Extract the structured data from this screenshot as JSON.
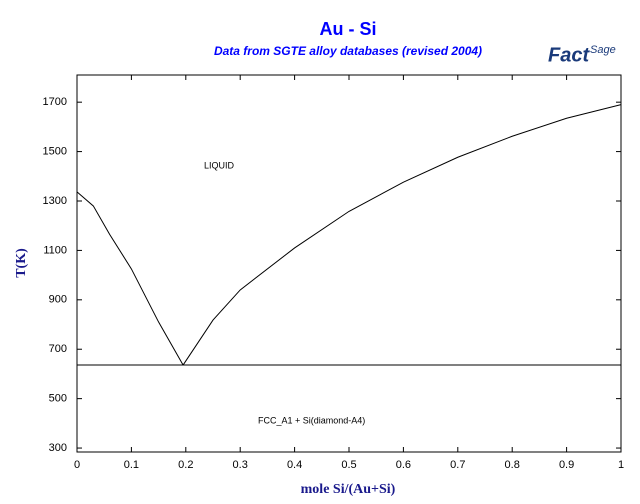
{
  "chart_data": {
    "type": "line",
    "title": "Au - Si",
    "subtitle": "Data from SGTE alloy databases (revised 2004)",
    "logo": [
      "Fact",
      "Sage"
    ],
    "x_label": "mole Si/(Au+Si)",
    "y_label": "T(K)",
    "annotations": [
      "LIQUID",
      "FCC_A1 + Si(diamond-A4)"
    ],
    "xlim": [
      0,
      1
    ],
    "ylim": [
      284,
      1810
    ],
    "xticks": [
      0,
      0.1,
      0.2,
      0.3,
      0.4,
      0.5,
      0.6,
      0.7,
      0.8,
      0.9,
      1
    ],
    "yticks": [
      300,
      500,
      700,
      900,
      1100,
      1300,
      1500,
      1700
    ],
    "series": [
      {
        "color": "#000000",
        "x": [
          0,
          0.03,
          0.06,
          0.1,
          0.15,
          0.195
        ],
        "values": [
          1337,
          1280,
          1165,
          1025,
          810,
          636
        ]
      },
      {
        "color": "#000000",
        "x": [
          0.195,
          0.25,
          0.3,
          0.4,
          0.5,
          0.6,
          0.7,
          0.8,
          0.9,
          1
        ],
        "values": [
          636,
          818,
          940,
          1110,
          1258,
          1376,
          1477,
          1562,
          1635,
          1690
        ]
      },
      {
        "color": "#000000",
        "x": [
          0,
          1
        ],
        "values": [
          636,
          636
        ]
      }
    ]
  }
}
